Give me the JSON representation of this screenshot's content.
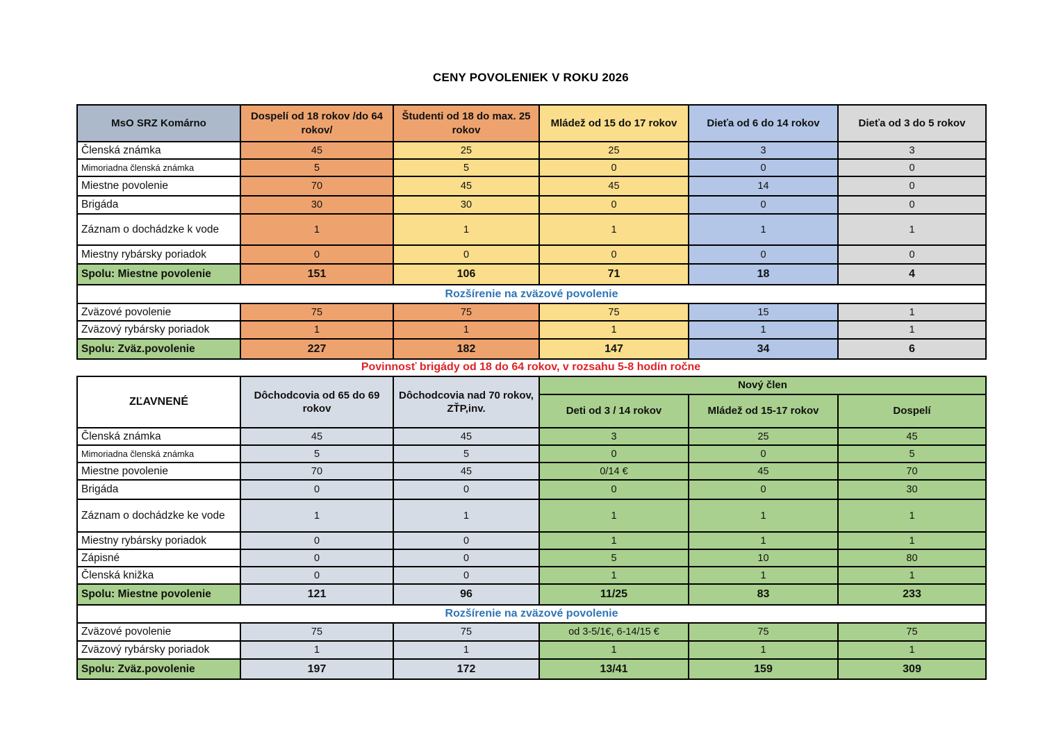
{
  "title": "CENY POVOLENIEK V ROKU 2026",
  "note_red": "Povinnosť brigády od 18 do 64 rokov, v rozsahu 5-8 hodín ročne",
  "colors": {
    "orange": "#EEA36F",
    "yellow": "#FBDE8B",
    "blue": "#B3C6E7",
    "gray": "#D9D9D9",
    "green": "#A9D08E",
    "bluegray": "#ACB9CA",
    "steel": "#D6DCE5",
    "white": "#FFFFFF",
    "note_red_color": "#E02226",
    "divider_blue": "#2E75B6",
    "border_black": "#000000"
  },
  "table1": {
    "corner": "MsO SRZ Komárno",
    "corner_color": "bluegray",
    "headers": [
      {
        "text": "Dospelí od 18 rokov /do 64 rokov/",
        "color": "orange"
      },
      {
        "text": "Študenti od 18 do max. 25 rokov",
        "color": "orange"
      },
      {
        "text": "Mládež od 15 do 17 rokov",
        "color": "yellow"
      },
      {
        "text": "Dieťa od 6 do 14 rokov",
        "color": "blue"
      },
      {
        "text": "Dieťa od 3 do 5 rokov",
        "color": "gray"
      }
    ],
    "col_colors_top": [
      "orange",
      "yellow",
      "yellow",
      "blue",
      "gray"
    ],
    "col_colors_bottom": [
      "orange",
      "orange",
      "yellow",
      "blue",
      "gray"
    ],
    "rows_top": [
      {
        "label": "Členská známka",
        "values": [
          "45",
          "25",
          "25",
          "3",
          "3"
        ]
      },
      {
        "label": "Mimoriadna členská známka",
        "values": [
          "5",
          "5",
          "0",
          "0",
          "0"
        ]
      },
      {
        "label": "Miestne povolenie",
        "values": [
          "70",
          "45",
          "45",
          "14",
          "0"
        ]
      },
      {
        "label": "Brigáda",
        "values": [
          "30",
          "30",
          "0",
          "0",
          "0"
        ]
      },
      {
        "label": "Záznam o dochádzke k vode",
        "values": [
          "1",
          "1",
          "1",
          "1",
          "1"
        ]
      },
      {
        "label": "Miestny rybársky poriadok",
        "values": [
          "0",
          "0",
          "0",
          "0",
          "0"
        ]
      }
    ],
    "sum_top": {
      "label": "Spolu: Miestne povolenie",
      "values": [
        "151",
        "106",
        "71",
        "18",
        "4"
      ]
    },
    "divider": "Rozšírenie na zväzové povolenie",
    "rows_bottom": [
      {
        "label": "Zväzové povolenie",
        "values": [
          "75",
          "75",
          "75",
          "15",
          "1"
        ]
      },
      {
        "label": "Zväzový rybársky poriadok",
        "values": [
          "1",
          "1",
          "1",
          "1",
          "1"
        ]
      }
    ],
    "sum_bottom": {
      "label": "Spolu: Zväz.povolenie",
      "values": [
        "227",
        "182",
        "147",
        "34",
        "6"
      ]
    }
  },
  "table2": {
    "corner": "ZĽAVNENÉ",
    "corner_color": "white",
    "headers": [
      {
        "text": "Dôchodcovia od 65 do 69 rokov",
        "color": "steel"
      },
      {
        "text": "Dôchodcovia nad 70 rokov, ZŤP,inv.",
        "color": "steel"
      }
    ],
    "group_header": {
      "text": "Nový člen",
      "color": "green"
    },
    "sub_headers": [
      {
        "text": "Deti od 3 / 14 rokov",
        "color": "green"
      },
      {
        "text": "Mládež od 15-17 rokov",
        "color": "green"
      },
      {
        "text": "Dospelí",
        "color": "green"
      }
    ],
    "col_colors_top": [
      "steel",
      "steel",
      "green",
      "green",
      "green"
    ],
    "col_colors_bottom": [
      "steel",
      "steel",
      "green",
      "green",
      "green"
    ],
    "rows_top": [
      {
        "label": "Členská známka",
        "values": [
          "45",
          "45",
          "3",
          "25",
          "45"
        ]
      },
      {
        "label": "Mimoriadna členská známka",
        "values": [
          "5",
          "5",
          "0",
          "0",
          "5"
        ]
      },
      {
        "label": "Miestne povolenie",
        "values": [
          "70",
          "45",
          "0/14 €",
          "45",
          "70"
        ]
      },
      {
        "label": "Brigáda",
        "values": [
          "0",
          "0",
          "0",
          "0",
          "30"
        ]
      },
      {
        "label": "Záznam o dochádzke ke vode",
        "values": [
          "1",
          "1",
          "1",
          "1",
          "1"
        ]
      },
      {
        "label": "Miestny rybársky poriadok",
        "values": [
          "0",
          "0",
          "1",
          "1",
          "1"
        ]
      },
      {
        "label": "Zápisné",
        "values": [
          "0",
          "0",
          "5",
          "10",
          "80"
        ]
      },
      {
        "label": "Členská knižka",
        "values": [
          "0",
          "0",
          "1",
          "1",
          "1"
        ]
      }
    ],
    "sum_top": {
      "label": "Spolu: Miestne povolenie",
      "values": [
        "121",
        "96",
        "11/25",
        "83",
        "233"
      ]
    },
    "divider": "Rozšírenie na zväzové povolenie",
    "rows_bottom": [
      {
        "label": "Zväzové povolenie",
        "values": [
          "75",
          "75",
          "od 3-5/1€, 6-14/15 €",
          "75",
          "75"
        ]
      },
      {
        "label": "Zväzový rybársky poriadok",
        "values": [
          "1",
          "1",
          "1",
          "1",
          "1"
        ]
      }
    ],
    "sum_bottom": {
      "label": "Spolu: Zväz.povolenie",
      "values": [
        "197",
        "172",
        "13/41",
        "159",
        "309"
      ]
    }
  }
}
